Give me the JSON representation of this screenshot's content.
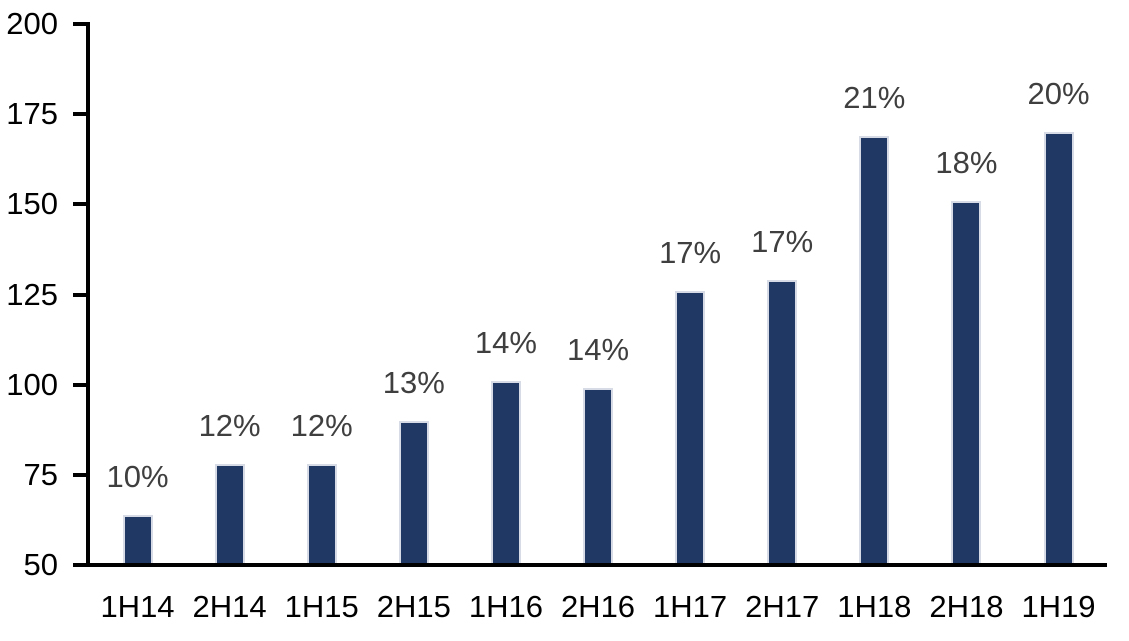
{
  "chart_data": {
    "type": "bar",
    "title": "",
    "xlabel": "",
    "ylabel": "",
    "categories": [
      "1H14",
      "2H14",
      "1H15",
      "2H15",
      "1H16",
      "2H16",
      "1H17",
      "2H17",
      "1H18",
      "2H18",
      "1H19"
    ],
    "values": [
      64,
      78,
      78,
      90,
      101,
      99,
      126,
      129,
      169,
      151,
      170
    ],
    "data_labels": [
      "10%",
      "12%",
      "12%",
      "13%",
      "14%",
      "14%",
      "17%",
      "17%",
      "21%",
      "18%",
      "20%"
    ],
    "ylim": [
      50,
      200
    ],
    "yticks": [
      50,
      75,
      100,
      125,
      150,
      175,
      200
    ],
    "grid": false,
    "legend": false,
    "colors": {
      "bar_fill": "#1F3864",
      "bar_border": "#D7DBE5",
      "data_label": "#3F3F3F",
      "axis_text": "#000000",
      "axis_line": "#000000",
      "background": "#FFFFFF"
    }
  }
}
